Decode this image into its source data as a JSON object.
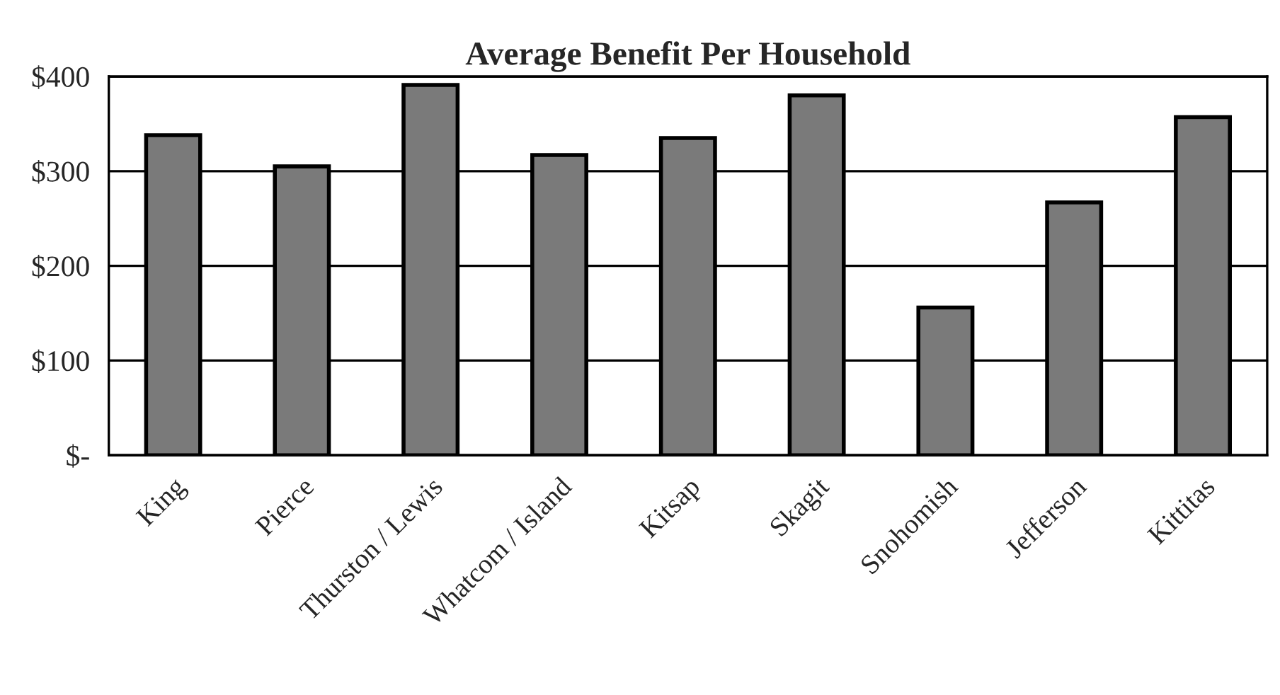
{
  "chart_data": {
    "type": "bar",
    "title": "Average Benefit Per Household",
    "categories": [
      "King",
      "Pierce",
      "Thurston / Lewis",
      "Whatcom / Island",
      "Kitsap",
      "Skagit",
      "Snohomish",
      "Jefferson",
      "Kittitas"
    ],
    "values": [
      338,
      305,
      391,
      317,
      335,
      380,
      156,
      267,
      357
    ],
    "color": "#7a7a7a",
    "ylim": [
      0,
      400
    ],
    "yticks": [
      {
        "value": 0,
        "label": "$-"
      },
      {
        "value": 100,
        "label": "$100"
      },
      {
        "value": 200,
        "label": "$200"
      },
      {
        "value": 300,
        "label": "$300"
      },
      {
        "value": 400,
        "label": "$400"
      }
    ],
    "grid": "y",
    "legend": false
  }
}
